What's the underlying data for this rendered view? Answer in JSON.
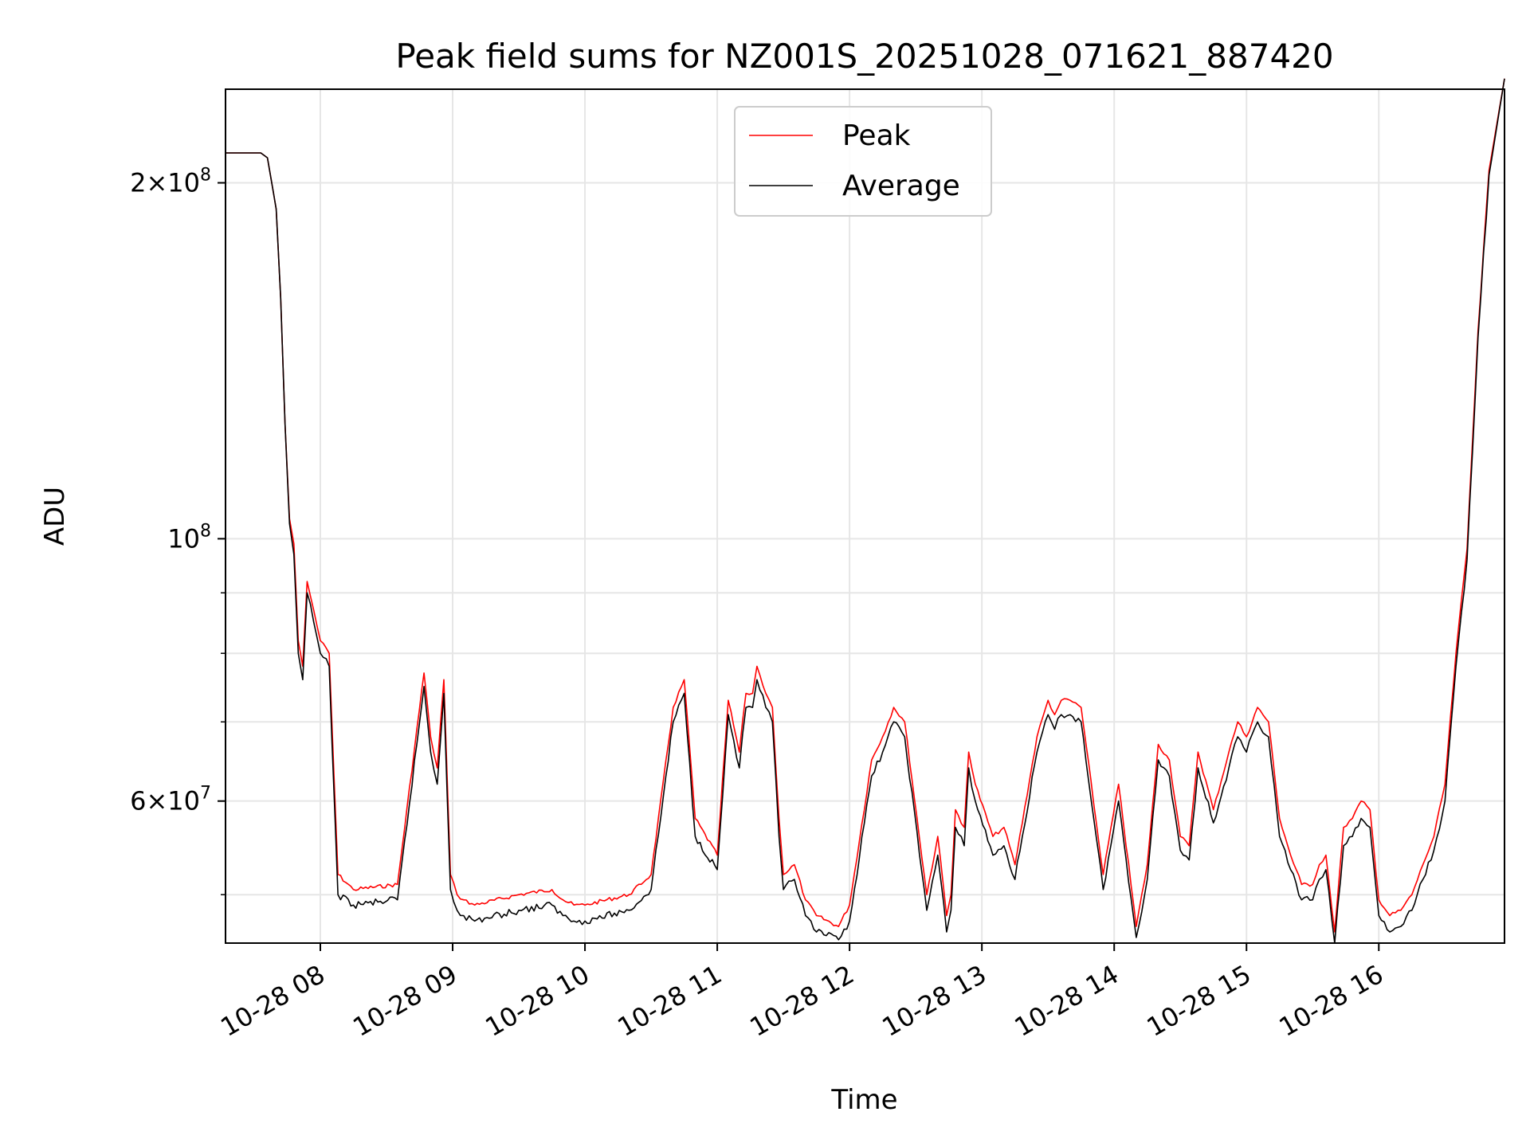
{
  "chart_data": {
    "type": "line",
    "title": "Peak field sums for NZ001S_20251028_071621_887420",
    "xlabel": "Time",
    "ylabel": "ADU",
    "yscale": "log",
    "xlim": [
      "10-28 07:17",
      "10-28 16:57"
    ],
    "ylim": [
      45500000,
      240000000
    ],
    "grid": true,
    "legend": {
      "position": "top-center",
      "entries": [
        "Peak",
        "Average"
      ]
    },
    "x_ticks": [
      "10-28 08",
      "10-28 09",
      "10-28 10",
      "10-28 11",
      "10-28 12",
      "10-28 13",
      "10-28 14",
      "10-28 15",
      "10-28 16"
    ],
    "y_tick_labels": [
      {
        "value": 200000000,
        "mantissa": "2",
        "exponent": "8"
      },
      {
        "value": 100000000,
        "mantissa": "",
        "exponent": "8"
      },
      {
        "value": 60000000,
        "mantissa": "6",
        "exponent": "7"
      }
    ],
    "y_minor_grid": [
      50000000,
      70000000,
      80000000,
      90000000
    ],
    "x": [
      "07:17",
      "07:29",
      "07:30",
      "07:33",
      "07:36",
      "07:40",
      "07:42",
      "07:44",
      "07:46",
      "07:48",
      "07:50",
      "07:52",
      "07:54",
      "07:57",
      "08:00",
      "08:04",
      "08:08",
      "08:15",
      "08:35",
      "08:47",
      "08:50",
      "08:53",
      "08:56",
      "08:59",
      "09:02",
      "09:05",
      "09:10",
      "09:30",
      "09:45",
      "09:50",
      "09:55",
      "10:00",
      "10:20",
      "10:30",
      "10:40",
      "10:45",
      "10:50",
      "11:00",
      "11:05",
      "11:10",
      "11:13",
      "11:16",
      "11:18",
      "11:22",
      "11:25",
      "11:28",
      "11:30",
      "11:35",
      "11:40",
      "11:45",
      "11:55",
      "12:00",
      "12:10",
      "12:15",
      "12:20",
      "12:25",
      "12:35",
      "12:40",
      "12:44",
      "12:46",
      "12:48",
      "12:52",
      "12:54",
      "12:57",
      "13:05",
      "13:10",
      "13:15",
      "13:25",
      "13:30",
      "13:33",
      "13:36",
      "13:40",
      "13:45",
      "13:55",
      "14:02",
      "14:10",
      "14:15",
      "14:20",
      "14:25",
      "14:30",
      "14:34",
      "14:38",
      "14:45",
      "14:52",
      "14:56",
      "15:00",
      "15:05",
      "15:10",
      "15:15",
      "15:20",
      "15:25",
      "15:30",
      "15:33",
      "15:36",
      "15:40",
      "15:44",
      "15:48",
      "15:52",
      "15:56",
      "16:00",
      "16:05",
      "16:10",
      "16:15",
      "16:20",
      "16:25",
      "16:30",
      "16:35",
      "16:40",
      "16:45",
      "16:50",
      "16:57"
    ],
    "series": [
      {
        "name": "Peak",
        "color": "#ff0000",
        "values": [
          212,
          212,
          212,
          212,
          210,
          190,
          160,
          125,
          104,
          99,
          82,
          78,
          92,
          87,
          82,
          80,
          52,
          50.5,
          51,
          77,
          68,
          64,
          76,
          52,
          50,
          49.5,
          49,
          50,
          50.5,
          49.5,
          49,
          49,
          50,
          52,
          72,
          76,
          58,
          54,
          73,
          66,
          74,
          74,
          78,
          74,
          72,
          58,
          52,
          53,
          49.5,
          48,
          47,
          49,
          65,
          68,
          72,
          70,
          50,
          56,
          48,
          50,
          59,
          57,
          66,
          62,
          56,
          57,
          53,
          68,
          73,
          71,
          73,
          73,
          72,
          52,
          62,
          47,
          53,
          67,
          65,
          56,
          55,
          66,
          59,
          66,
          70,
          68,
          72,
          70,
          58,
          54,
          51,
          51,
          53,
          54,
          46.5,
          57,
          58,
          60,
          59,
          49.5,
          48,
          48.5,
          50,
          53,
          56,
          62,
          80,
          98,
          150,
          205,
          245
        ]
      },
      {
        "name": "Average",
        "color": "#000000",
        "values": [
          212,
          212,
          212,
          212,
          210,
          190,
          160,
          125,
          103,
          97,
          80,
          76,
          90,
          85,
          80,
          78,
          50,
          49,
          49.5,
          75,
          66,
          62,
          74,
          50.5,
          48.5,
          48,
          47.5,
          48.5,
          49,
          48,
          47.5,
          47.5,
          48.5,
          50.5,
          70,
          74,
          56,
          52.5,
          71,
          64,
          72,
          72,
          76,
          72,
          70,
          56,
          50.5,
          51.5,
          48,
          46.5,
          45.8,
          47.5,
          63,
          66,
          70,
          68,
          48.5,
          54,
          46.5,
          48.5,
          57,
          55,
          64,
          60,
          54,
          55,
          51.5,
          66,
          71,
          69,
          71,
          71,
          70,
          50.5,
          60,
          46,
          51.5,
          65,
          63,
          54.5,
          53.5,
          64,
          57.5,
          64,
          68,
          66,
          70,
          68,
          56,
          52.5,
          49.5,
          49.5,
          51.5,
          52.5,
          45.5,
          55,
          56,
          58,
          57,
          48,
          46.5,
          47,
          48.5,
          51.5,
          54.5,
          60,
          78,
          96,
          148,
          203,
          245
        ]
      }
    ]
  }
}
